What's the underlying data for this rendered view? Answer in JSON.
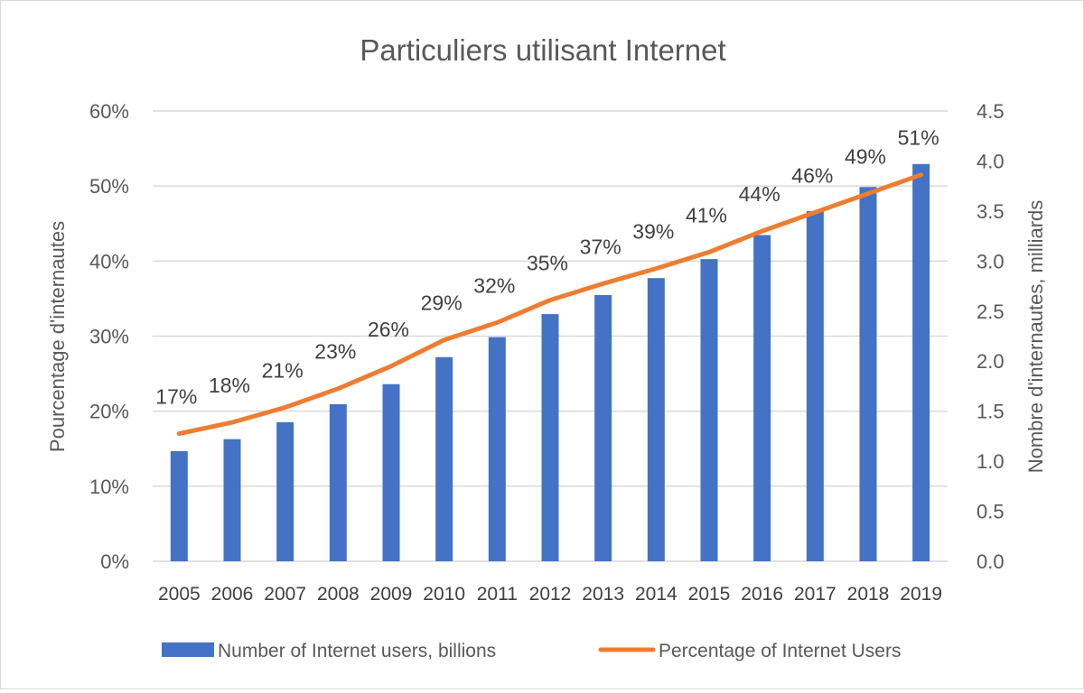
{
  "chart_data": {
    "type": "bar",
    "title": "Particuliers utilisant Internet",
    "categories": [
      "2005",
      "2006",
      "2007",
      "2008",
      "2009",
      "2010",
      "2011",
      "2012",
      "2013",
      "2014",
      "2015",
      "2016",
      "2017",
      "2018",
      "2019"
    ],
    "series": [
      {
        "name": "Number of Internet users, billions",
        "type": "bar",
        "axis": "right",
        "color": "#4472C4",
        "values": [
          1.1,
          1.22,
          1.39,
          1.57,
          1.77,
          2.04,
          2.24,
          2.47,
          2.66,
          2.83,
          3.02,
          3.26,
          3.5,
          3.74,
          3.97
        ]
      },
      {
        "name": "Percentage of Internet Users",
        "type": "line",
        "axis": "left",
        "color": "#ED7D31",
        "values": [
          0.17,
          0.185,
          0.205,
          0.23,
          0.26,
          0.295,
          0.318,
          0.348,
          0.37,
          0.39,
          0.412,
          0.44,
          0.465,
          0.49,
          0.515
        ],
        "labels": [
          "17%",
          "18%",
          "21%",
          "23%",
          "26%",
          "29%",
          "32%",
          "35%",
          "37%",
          "39%",
          "41%",
          "44%",
          "46%",
          "49%",
          "51%"
        ]
      }
    ],
    "ylabel": "Pourcentage d'internautes",
    "y2label": "Nombre d'internautes, milliards",
    "ylim": [
      0,
      0.6
    ],
    "y2lim": [
      0,
      4.5
    ],
    "yticks": [
      {
        "value": 0,
        "label": "0%"
      },
      {
        "value": 0.1,
        "label": "10%"
      },
      {
        "value": 0.2,
        "label": "20%"
      },
      {
        "value": 0.3,
        "label": "30%"
      },
      {
        "value": 0.4,
        "label": "40%"
      },
      {
        "value": 0.5,
        "label": "50%"
      },
      {
        "value": 0.6,
        "label": "60%"
      }
    ],
    "y2ticks": [
      {
        "value": 0,
        "label": "0.0"
      },
      {
        "value": 0.5,
        "label": "0.5"
      },
      {
        "value": 1.0,
        "label": "1.0"
      },
      {
        "value": 1.5,
        "label": "1.5"
      },
      {
        "value": 2.0,
        "label": "2.0"
      },
      {
        "value": 2.5,
        "label": "2.5"
      },
      {
        "value": 3.0,
        "label": "3.0"
      },
      {
        "value": 3.5,
        "label": "3.5"
      },
      {
        "value": 4.0,
        "label": "4.0"
      },
      {
        "value": 4.5,
        "label": "4.5"
      }
    ],
    "grid": true,
    "legend_position": "bottom"
  }
}
